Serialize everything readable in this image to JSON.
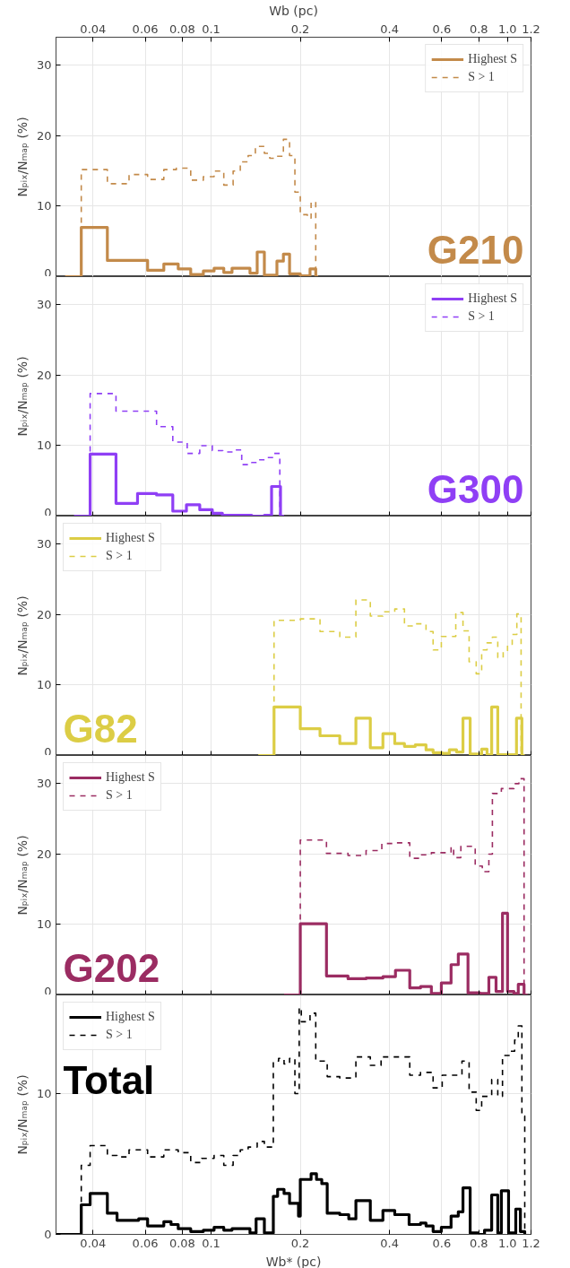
{
  "chart_data": [
    {
      "type": "step",
      "log": "x",
      "grid": true,
      "legend": "top right",
      "xlim": [
        0.03,
        1.2
      ],
      "xticks": [
        0.04,
        0.06,
        0.08,
        0.1,
        0.2,
        0.4,
        0.6,
        0.8,
        {
          "value": 1,
          "label": "1.0"
        },
        1.2
      ],
      "xlabel": "Wb (pc)",
      "ylim": [
        0,
        34
      ],
      "yticks": [
        0,
        10,
        20,
        30
      ],
      "ylabel": "Nₚᵢₓ/Nₘₐₚ (%)",
      "annotations": [
        "G210"
      ],
      "series": [
        {
          "name": "Highest S",
          "color": "#c38a4a",
          "line_style": "solid",
          "x": [
            0.0322,
            0.0365,
            0.0447,
            0.0611,
            0.0693,
            0.0775,
            0.0854,
            0.0942,
            0.1024,
            0.1104,
            0.1177,
            0.1353,
            0.1431,
            0.1513,
            0.1668,
            0.1754,
            0.184,
            0.2,
            0.2157,
            0.2255,
            0.2298
          ],
          "values": [
            0,
            7.0,
            2.3,
            0.9,
            1.8,
            1.1,
            0.3,
            0.8,
            1.2,
            0.6,
            1.2,
            0.5,
            3.5,
            0.2,
            2.2,
            3.2,
            0.4,
            0.1,
            1.1,
            0,
            0
          ]
        },
        {
          "name": "S > 1",
          "color": "#c38a4a",
          "line_style": "dashed",
          "x": [
            0.0365,
            0.0365,
            0.0447,
            0.0529,
            0.0611,
            0.0693,
            0.0764,
            0.0854,
            0.0942,
            0.1024,
            0.1104,
            0.1187,
            0.1255,
            0.1334,
            0.1411,
            0.1513,
            0.1578,
            0.1668,
            0.1754,
            0.184,
            0.1918,
            0.2,
            0.2113,
            0.2175,
            0.2255
          ],
          "values": [
            0,
            15.2,
            13.2,
            14.5,
            13.8,
            15.2,
            15.4,
            13.7,
            14.2,
            15.0,
            13.0,
            15.0,
            16.3,
            17.2,
            18.5,
            17.5,
            16.8,
            17.1,
            19.5,
            17.2,
            12.0,
            8.8,
            8.3,
            10.6,
            0
          ]
        }
      ]
    },
    {
      "type": "step",
      "log": "x",
      "grid": true,
      "legend": "top right",
      "tick_labels": "y",
      "xlim": [
        0.03,
        1.2
      ],
      "xticks": [
        0.04,
        0.06,
        0.08,
        0.1,
        0.2,
        0.4,
        0.6,
        0.8,
        1,
        1.2
      ],
      "ylim": [
        0,
        34
      ],
      "yticks": [
        0,
        10,
        20,
        30
      ],
      "ylabel": "Nₚᵢₓ/Nₘₐₚ (%)",
      "annotations": [
        "G300"
      ],
      "series": [
        {
          "name": "Highest S",
          "color": "#8f3ff5",
          "line_style": "solid",
          "x": [
            0.0345,
            0.0391,
            0.0478,
            0.0565,
            0.0655,
            0.0743,
            0.0826,
            0.0916,
            0.101,
            0.1092,
            0.1372,
            0.1513,
            0.16,
            0.1715,
            0.1763
          ],
          "values": [
            0,
            8.8,
            1.8,
            3.2,
            3.0,
            0.7,
            1.6,
            0.9,
            0.4,
            0.1,
            0,
            0.1,
            4.2,
            0,
            0
          ]
        },
        {
          "name": "S > 1",
          "color": "#8f3ff5",
          "line_style": "dashed",
          "x": [
            0.0391,
            0.0391,
            0.0478,
            0.0655,
            0.0743,
            0.0831,
            0.0916,
            0.101,
            0.1096,
            0.1187,
            0.1269,
            0.1372,
            0.1451,
            0.1534,
            0.1622,
            0.1706
          ],
          "values": [
            0,
            17.4,
            14.9,
            12.7,
            10.5,
            8.9,
            10.0,
            9.3,
            9.1,
            9.4,
            7.3,
            7.6,
            8.0,
            8.3,
            8.9,
            0
          ]
        }
      ]
    },
    {
      "type": "step",
      "log": "x",
      "grid": true,
      "legend": "top left",
      "tick_labels": "y",
      "xlim": [
        0.03,
        1.2
      ],
      "xticks": [
        0.04,
        0.06,
        0.08,
        0.1,
        0.2,
        0.4,
        0.6,
        0.8,
        1,
        1.2
      ],
      "ylim": [
        0,
        34
      ],
      "yticks": [
        0,
        10,
        20,
        30
      ],
      "ylabel": "Nₚᵢₓ/Nₘₐₚ (%)",
      "annotations": [
        "G82"
      ],
      "series": [
        {
          "name": "Highest S",
          "color": "#dccd45",
          "line_style": "solid",
          "x": [
            0.1443,
            0.1631,
            0.2,
            0.2331,
            0.2718,
            0.308,
            0.3445,
            0.3799,
            0.4165,
            0.4491,
            0.4883,
            0.531,
            0.561,
            0.602,
            0.6364,
            0.673,
            0.7075,
            0.748,
            0.818,
            0.853,
            0.8842,
            0.927,
            1.072,
            1.118,
            1.143
          ],
          "values": [
            0,
            6.9,
            3.8,
            2.8,
            1.7,
            5.3,
            1.1,
            3.1,
            1.7,
            1.3,
            1.5,
            0.8,
            0.4,
            0.3,
            0.8,
            0.5,
            5.3,
            0.2,
            0.9,
            0.1,
            6.9,
            0.1,
            5.3,
            0,
            0
          ]
        },
        {
          "name": "S > 1",
          "color": "#dccd45",
          "line_style": "dashed",
          "x": [
            0.1631,
            0.1631,
            0.2,
            0.2331,
            0.2718,
            0.308,
            0.3445,
            0.3799,
            0.4165,
            0.4491,
            0.4883,
            0.531,
            0.561,
            0.598,
            0.669,
            0.7075,
            0.742,
            0.784,
            0.818,
            0.853,
            0.889,
            0.927,
            0.9667,
            1.0,
            1.037,
            1.075,
            1.111
          ],
          "values": [
            0,
            19.2,
            19.4,
            17.6,
            16.8,
            22.1,
            19.8,
            20.4,
            20.8,
            18.4,
            18.7,
            17.6,
            15.0,
            16.9,
            20.3,
            17.7,
            13.3,
            11.6,
            15.0,
            16.0,
            16.8,
            13.9,
            14.8,
            15.8,
            17.2,
            20.1,
            0
          ]
        }
      ]
    },
    {
      "type": "step",
      "log": "x",
      "grid": true,
      "legend": "top left",
      "tick_labels": "y",
      "xlim": [
        0.03,
        1.2
      ],
      "xticks": [
        0.04,
        0.06,
        0.08,
        0.1,
        0.2,
        0.4,
        0.6,
        0.8,
        1,
        1.2
      ],
      "ylim": [
        0,
        34
      ],
      "yticks": [
        0,
        10,
        20,
        30
      ],
      "ylabel": "Nₚᵢₓ/Nₘₐₚ (%)",
      "annotations": [
        "G202"
      ],
      "series": [
        {
          "name": "Highest S",
          "color": "#9b2c62",
          "line_style": "solid",
          "x": [
            0.1763,
            0.2,
            0.2451,
            0.2897,
            0.3333,
            0.3799,
            0.4188,
            0.468,
            0.5088,
            0.5535,
            0.598,
            0.645,
            0.6822,
            0.7356,
            0.8065,
            0.865,
            0.9146,
            0.9616,
            1.0,
            1.051,
            1.087,
            1.137,
            1.169
          ],
          "values": [
            0,
            10.1,
            2.7,
            2.3,
            2.4,
            2.6,
            3.5,
            1.0,
            1.2,
            0.2,
            1.7,
            4.3,
            5.8,
            0.3,
            0.2,
            2.5,
            0.5,
            11.6,
            0.5,
            0.2,
            1.5,
            0,
            0
          ]
        },
        {
          "name": "S > 1",
          "color": "#9b2c62",
          "line_style": "dashed",
          "x": [
            0.2,
            0.2,
            0.2451,
            0.2897,
            0.3333,
            0.3767,
            0.4188,
            0.468,
            0.5088,
            0.5535,
            0.645,
            0.658,
            0.696,
            0.778,
            0.822,
            0.865,
            0.889,
            0.953,
            1.051,
            1.092,
            1.137
          ],
          "values": [
            0,
            22.0,
            20.1,
            19.8,
            20.5,
            21.5,
            21.6,
            19.4,
            19.9,
            20.2,
            21.0,
            19.5,
            21.1,
            18.3,
            17.5,
            20.0,
            28.6,
            29.3,
            30.0,
            30.7,
            0
          ]
        }
      ]
    },
    {
      "type": "step",
      "log": "x",
      "grid": true,
      "legend": "top left",
      "xlim": [
        0.03,
        1.2
      ],
      "xticks": [
        0.04,
        0.06,
        0.08,
        0.1,
        0.2,
        0.4,
        0.6,
        0.8,
        {
          "value": 1,
          "label": "1.0"
        },
        1.2
      ],
      "xlabel": "Wb* (pc)",
      "ylim": [
        0,
        17
      ],
      "yticks": [
        0,
        10
      ],
      "ylabel": "Nₚᵢₓ/Nₘₐₚ (%)",
      "annotations": [
        "Total"
      ],
      "series": [
        {
          "name": "Highest S",
          "color": "#000000",
          "line_style": "solid",
          "x": [
            0.03,
            0.0365,
            0.0391,
            0.0447,
            0.0482,
            0.057,
            0.0611,
            0.0693,
            0.0733,
            0.0775,
            0.0854,
            0.0942,
            0.1024,
            0.1104,
            0.1177,
            0.1353,
            0.1419,
            0.1513,
            0.1622,
            0.1677,
            0.1763,
            0.184,
            0.1972,
            0.2,
            0.2175,
            0.2268,
            0.2363,
            0.2465,
            0.2718,
            0.2914,
            0.308,
            0.3445,
            0.3799,
            0.4165,
            0.4656,
            0.5088,
            0.531,
            0.561,
            0.598,
            0.645,
            0.6822,
            0.7075,
            0.748,
            0.7955,
            0.8363,
            0.8842,
            0.927,
            0.953,
            1.008,
            1.066,
            1.105,
            1.143
          ],
          "values": [
            0,
            2.1,
            2.9,
            1.5,
            1.0,
            1.1,
            0.6,
            0.9,
            0.7,
            0.4,
            0.2,
            0.3,
            0.5,
            0.3,
            0.4,
            0.1,
            1.1,
            0.1,
            2.7,
            3.2,
            2.9,
            2.2,
            1.3,
            3.9,
            4.3,
            3.9,
            3.6,
            1.5,
            1.4,
            1.1,
            2.4,
            1.0,
            1.7,
            1.4,
            0.7,
            0.8,
            0.6,
            0.2,
            0.5,
            1.3,
            1.6,
            3.3,
            0.1,
            0.0,
            0.3,
            2.8,
            0.1,
            3.1,
            0.1,
            1.8,
            0.2,
            0
          ]
        },
        {
          "name": "S > 1",
          "color": "#000000",
          "line_style": "dashed",
          "x": [
            0.0365,
            0.0365,
            0.0391,
            0.0447,
            0.0482,
            0.0529,
            0.0611,
            0.0693,
            0.0775,
            0.0854,
            0.0929,
            0.1024,
            0.1104,
            0.1187,
            0.1255,
            0.1334,
            0.1431,
            0.1513,
            0.1622,
            0.169,
            0.1763,
            0.184,
            0.1918,
            0.1983,
            0.2016,
            0.2157,
            0.2255,
            0.2465,
            0.2718,
            0.308,
            0.3445,
            0.3745,
            0.468,
            0.5088,
            0.561,
            0.602,
            0.669,
            0.702,
            0.742,
            0.784,
            0.818,
            0.8842,
            0.927,
            0.9616,
            1.022,
            1.057,
            1.087,
            1.118,
            1.143
          ],
          "values": [
            0,
            4.9,
            6.3,
            5.6,
            5.5,
            6.0,
            5.5,
            6.0,
            5.8,
            5.1,
            5.4,
            5.6,
            4.9,
            5.6,
            6.0,
            6.2,
            6.6,
            6.2,
            12.3,
            12.5,
            12.1,
            12.5,
            10.0,
            16.1,
            15.1,
            15.7,
            12.3,
            11.2,
            11.1,
            12.6,
            12.0,
            12.6,
            11.3,
            11.5,
            10.4,
            11.3,
            11.3,
            12.3,
            10.1,
            8.8,
            9.8,
            11.0,
            9.8,
            12.7,
            13.0,
            13.8,
            14.8,
            8.4,
            0
          ]
        }
      ]
    }
  ]
}
